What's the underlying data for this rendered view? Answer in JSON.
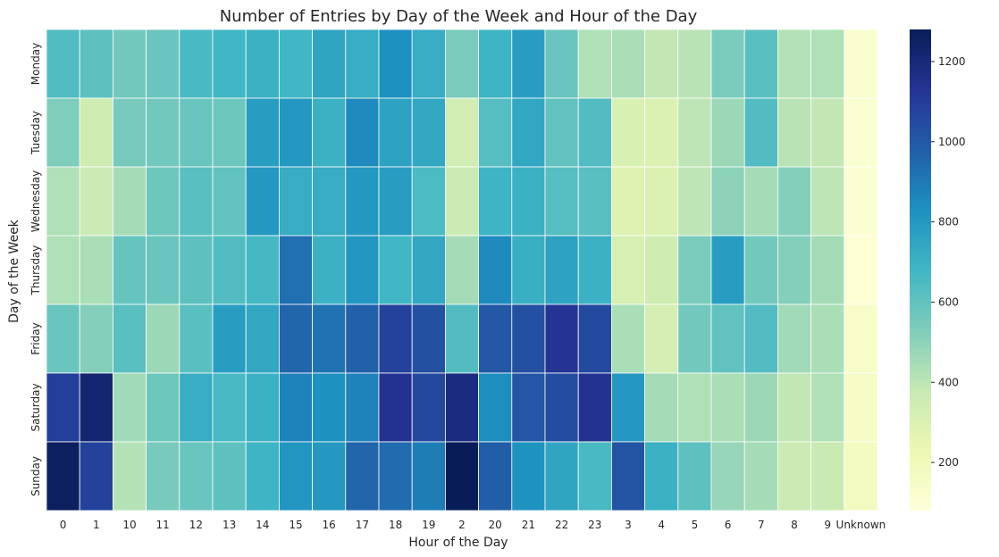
{
  "chart_data": {
    "type": "heatmap",
    "title": "Number of Entries by Day of the Week and Hour of the Day",
    "xlabel": "Hour of the Day",
    "ylabel": "Day of the Week",
    "x_categories": [
      "0",
      "1",
      "10",
      "11",
      "12",
      "13",
      "14",
      "15",
      "16",
      "17",
      "18",
      "19",
      "2",
      "20",
      "21",
      "22",
      "23",
      "3",
      "4",
      "5",
      "6",
      "7",
      "8",
      "9",
      "Unknown"
    ],
    "y_categories": [
      "Monday",
      "Tuesday",
      "Wednesday",
      "Thursday",
      "Friday",
      "Saturday",
      "Sunday"
    ],
    "values": [
      [
        640,
        610,
        560,
        580,
        660,
        680,
        700,
        680,
        750,
        720,
        830,
        720,
        540,
        690,
        780,
        580,
        430,
        440,
        390,
        410,
        540,
        620,
        420,
        430,
        120
      ],
      [
        530,
        350,
        550,
        560,
        580,
        570,
        780,
        800,
        700,
        850,
        760,
        740,
        340,
        630,
        740,
        600,
        640,
        310,
        300,
        400,
        470,
        640,
        410,
        390,
        110
      ],
      [
        430,
        360,
        450,
        570,
        620,
        600,
        800,
        720,
        720,
        800,
        780,
        650,
        360,
        690,
        700,
        630,
        620,
        290,
        300,
        400,
        500,
        450,
        520,
        400,
        110
      ],
      [
        430,
        440,
        590,
        580,
        610,
        640,
        670,
        930,
        700,
        810,
        680,
        740,
        450,
        850,
        710,
        760,
        700,
        320,
        350,
        540,
        780,
        560,
        520,
        450,
        100
      ],
      [
        580,
        520,
        620,
        470,
        620,
        780,
        740,
        960,
        920,
        970,
        1080,
        1030,
        640,
        1000,
        1030,
        1130,
        1050,
        440,
        330,
        560,
        600,
        640,
        460,
        440,
        140
      ],
      [
        1090,
        1220,
        460,
        570,
        720,
        660,
        700,
        870,
        830,
        870,
        1140,
        1060,
        1180,
        840,
        1010,
        1040,
        1140,
        800,
        450,
        430,
        440,
        470,
        390,
        430,
        150
      ],
      [
        1260,
        1080,
        420,
        550,
        580,
        610,
        690,
        810,
        800,
        960,
        940,
        890,
        1280,
        980,
        820,
        750,
        660,
        1020,
        700,
        610,
        480,
        450,
        360,
        370,
        170
      ]
    ],
    "colorbar": {
      "min": 80,
      "max": 1280,
      "ticks": [
        200,
        400,
        600,
        800,
        1000,
        1200
      ]
    },
    "colormap": [
      "#ffffd9",
      "#edf8b1",
      "#c7e9b4",
      "#7fcdbb",
      "#41b6c4",
      "#1d91c0",
      "#225ea8",
      "#253494",
      "#081d58"
    ],
    "grid": false
  }
}
